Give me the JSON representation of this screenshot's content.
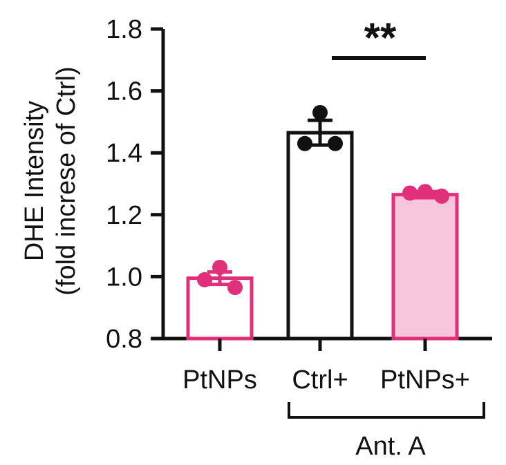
{
  "chart_data": {
    "type": "bar",
    "ylabel_line1": "DHE Intensity",
    "ylabel_line2": "(fold increse of Ctrl)",
    "ylim": [
      0.8,
      1.8
    ],
    "yticks": [
      "0.8",
      "1.0",
      "1.2",
      "1.4",
      "1.6",
      "1.8"
    ],
    "categories": [
      "PtNPs",
      "Ctrl+",
      "PtNPs+"
    ],
    "values": [
      0.995,
      1.465,
      1.265
    ],
    "error": [
      0.02,
      0.04,
      0.01
    ],
    "points": [
      [
        1.03,
        0.99,
        0.965
      ],
      [
        1.53,
        1.43,
        1.43
      ],
      [
        1.27,
        1.275,
        1.26
      ]
    ],
    "group_label": "Ant. A",
    "significance": "**",
    "colors": {
      "pink": "#e0307a",
      "pink_fill": "#f7c6dc",
      "black": "#111111",
      "white": "#ffffff"
    }
  }
}
